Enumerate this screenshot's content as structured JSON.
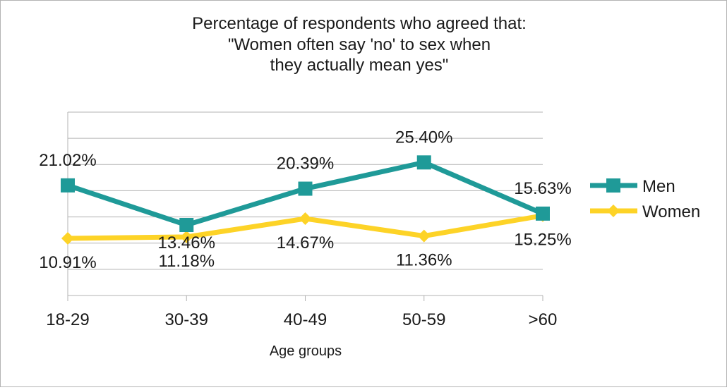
{
  "chart_data": {
    "type": "line",
    "title_lines": [
      "Percentage of respondents who agreed that:",
      "\"Women often say 'no' to sex when",
      "they actually mean yes\""
    ],
    "xlabel": "Age groups",
    "ylabel": "",
    "categories": [
      "18-29",
      "30-39",
      "40-49",
      "50-59",
      ">60"
    ],
    "ylim": [
      0,
      35
    ],
    "y_ticks": [
      0,
      5,
      10,
      15,
      20,
      25,
      30,
      35
    ],
    "grid": true,
    "legend_position": "right",
    "series": [
      {
        "name": "Men",
        "values": [
          21.02,
          13.46,
          20.39,
          25.4,
          15.63
        ],
        "labels": [
          "21.02%",
          "13.46%",
          "20.39%",
          "25.40%",
          "15.63%"
        ],
        "color": "#1f9a98",
        "marker": "square"
      },
      {
        "name": "Women",
        "values": [
          10.91,
          11.18,
          14.67,
          11.36,
          15.25
        ],
        "labels": [
          "10.91%",
          "11.18%",
          "14.67%",
          "11.36%",
          "15.25%"
        ],
        "color": "#fdd327",
        "marker": "diamond"
      }
    ]
  }
}
